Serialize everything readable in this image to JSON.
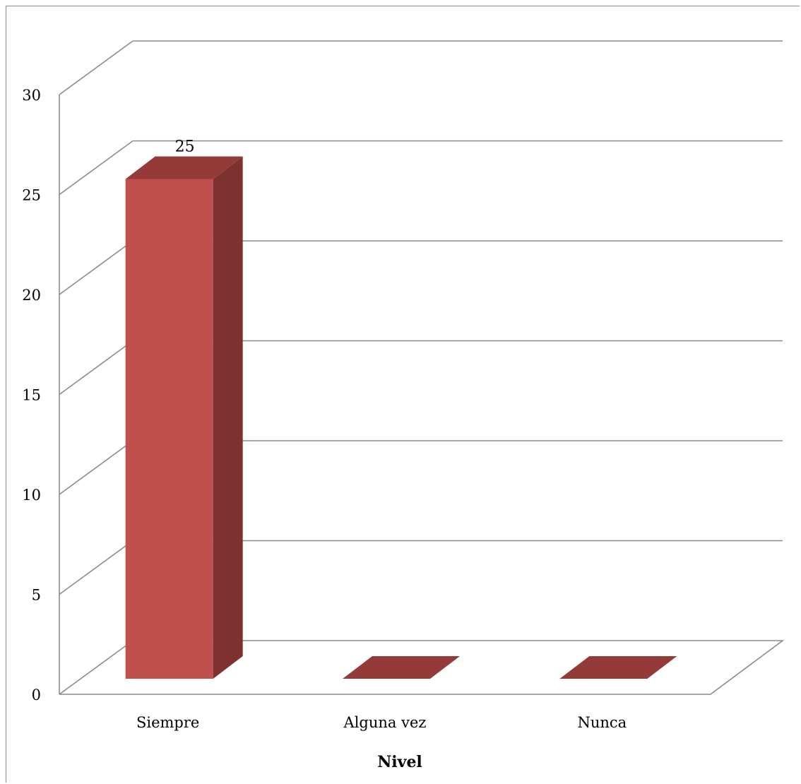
{
  "chart_data": {
    "type": "bar",
    "style": "3d-column",
    "categories": [
      "Siempre",
      "Alguna vez",
      "Nunca"
    ],
    "values": [
      25,
      0,
      0
    ],
    "data_labels": [
      "25",
      "",
      ""
    ],
    "title": "",
    "xlabel": "Nivel",
    "ylabel": "",
    "ylim": [
      0,
      30
    ],
    "yticks": [
      "0",
      "5",
      "10",
      "15",
      "20",
      "25",
      "30"
    ],
    "grid": true,
    "legend": "none",
    "colors": {
      "bar_front": "#c0504d",
      "bar_top": "#943a38",
      "bar_side": "#7d3230",
      "gridline": "#8c8c8c"
    }
  }
}
